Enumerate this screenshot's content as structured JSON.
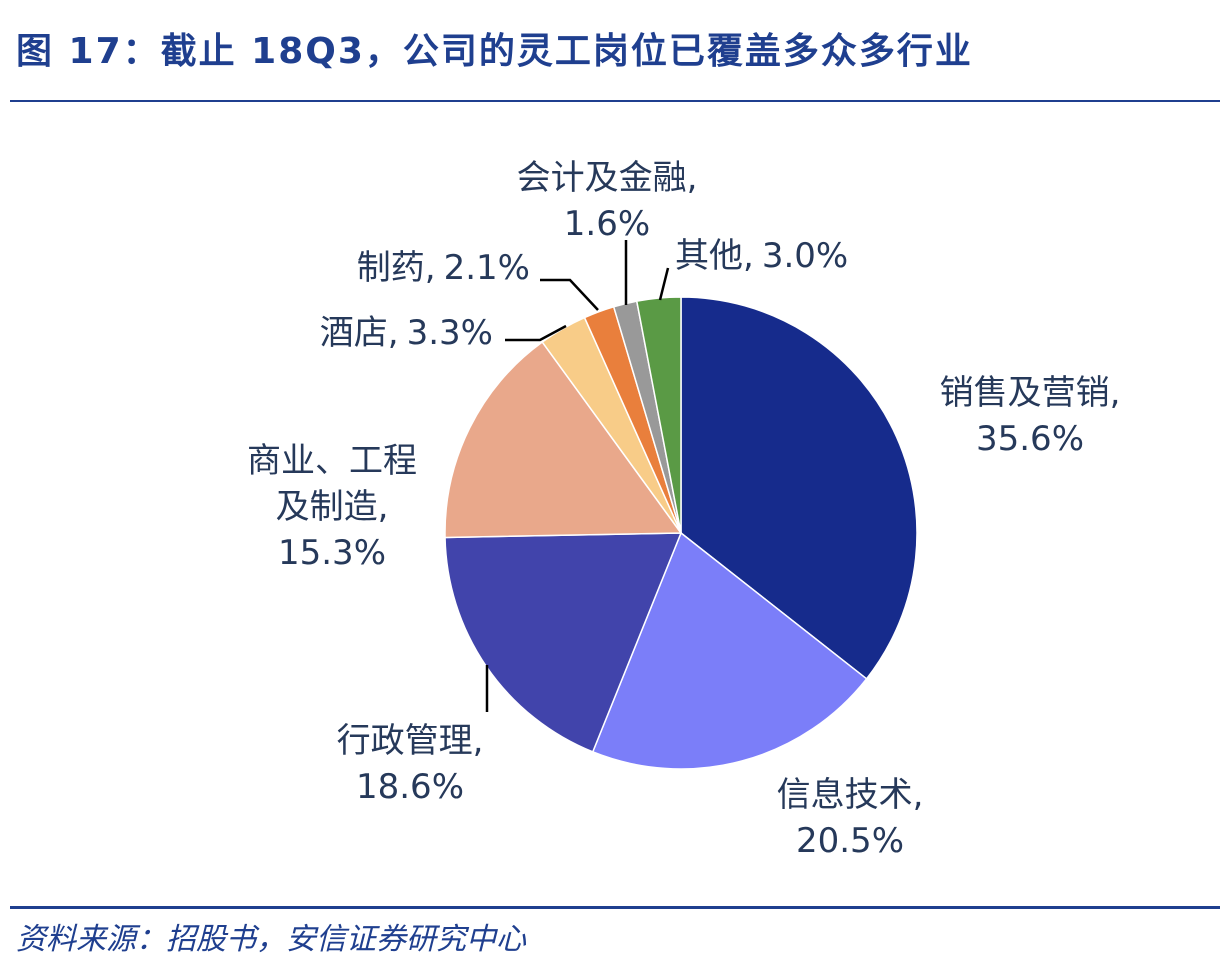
{
  "chart_data": {
    "type": "pie",
    "title": "图 17：截止 18Q3，公司的灵工岗位已覆盖多众多行业",
    "source": "资料来源：招股书，安信证券研究中心",
    "categories": [
      "销售及营销,",
      "信息技术,",
      "行政管理,",
      "商业、工程及制造,",
      "酒店,",
      "制药,",
      "会计及金融,",
      "其他,"
    ],
    "values": [
      35.6,
      20.5,
      18.6,
      15.3,
      3.3,
      2.1,
      1.6,
      3.0
    ],
    "value_labels": [
      "35.6%",
      "20.5%",
      "18.6%",
      "15.3%",
      "3.3%",
      "2.1%",
      "1.6%",
      "3.0%"
    ],
    "colors": [
      "#162b8c",
      "#7b7ef9",
      "#4144ab",
      "#e9a88b",
      "#f8cc88",
      "#e97f3c",
      "#999999",
      "#5a9a45"
    ]
  }
}
